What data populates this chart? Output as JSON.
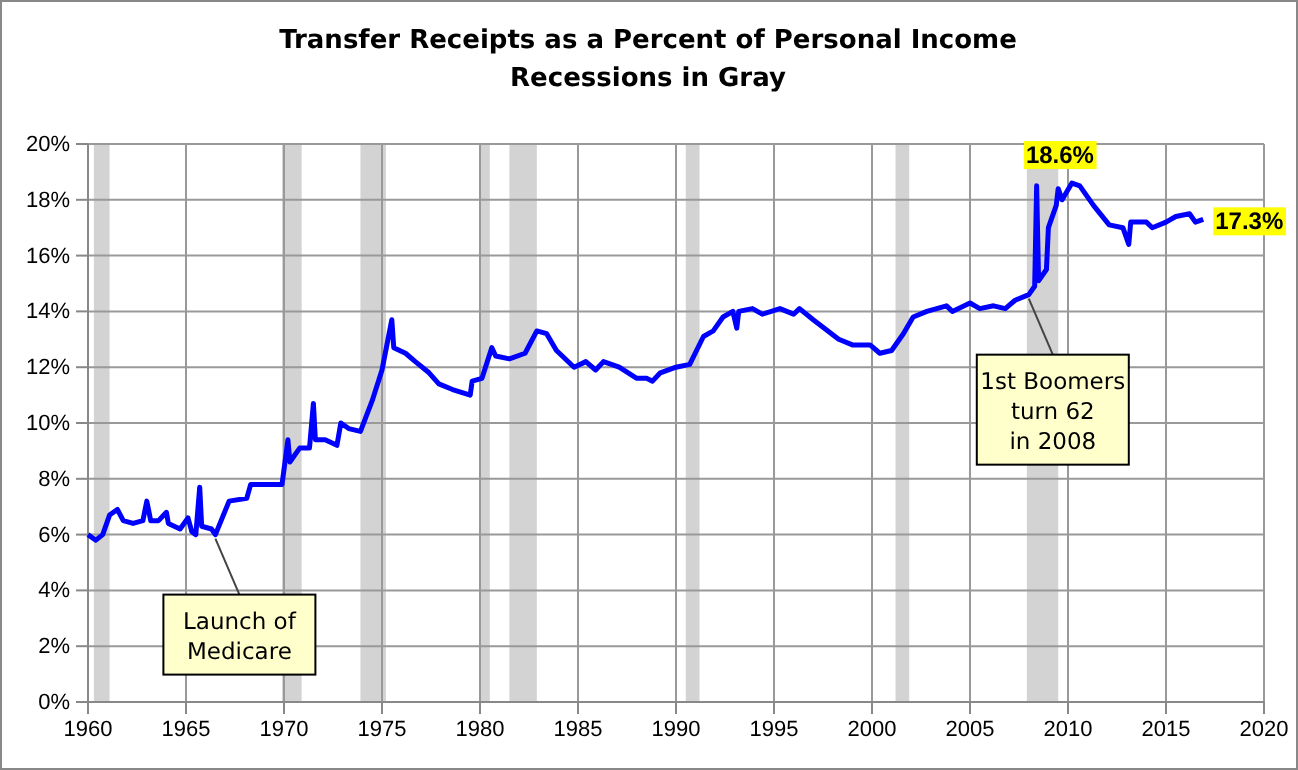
{
  "chart_data": {
    "type": "line",
    "title": "Transfer Receipts as a Percent of Personal Income",
    "subtitle": "Recessions in Gray",
    "x": [
      1960,
      1960.4,
      1960.75,
      1961.1,
      1961.5,
      1961.8,
      1962.3,
      1962.8,
      1963.0,
      1963.2,
      1963.6,
      1964.0,
      1964.1,
      1964.7,
      1965.1,
      1965.3,
      1965.5,
      1965.7,
      1965.8,
      1966.3,
      1966.5,
      1967.2,
      1968.1,
      1968.3,
      1969.1,
      1969.9,
      1970.2,
      1970.3,
      1970.8,
      1971.3,
      1971.5,
      1971.6,
      1972.1,
      1972.7,
      1972.9,
      1973.3,
      1973.9,
      1974.5,
      1975.0,
      1975.5,
      1975.6,
      1976.2,
      1976.7,
      1977.4,
      1977.9,
      1978.6,
      1979.5,
      1979.6,
      1980.1,
      1980.6,
      1980.8,
      1981.5,
      1982.3,
      1982.9,
      1983.4,
      1983.9,
      1984.8,
      1985.4,
      1985.9,
      1986.3,
      1987.1,
      1988.0,
      1988.5,
      1988.8,
      1989.2,
      1990.0,
      1990.7,
      1991.4,
      1991.9,
      1992.4,
      1992.9,
      1993.1,
      1993.2,
      1993.9,
      1994.4,
      1995.3,
      1996.0,
      1996.3,
      1997.0,
      1998.3,
      1999.0,
      1999.9,
      2000.4,
      2001.0,
      2001.6,
      2002.1,
      2002.8,
      2003.8,
      2004.1,
      2005.0,
      2005.5,
      2006.2,
      2006.8,
      2007.3,
      2008.0,
      2008.3,
      2008.4,
      2008.5,
      2008.9,
      2009.0,
      2009.4,
      2009.5,
      2009.7,
      2010.2,
      2010.6,
      2011.3,
      2012.1,
      2012.8,
      2013.1,
      2013.2,
      2014.0,
      2014.3,
      2015.0,
      2015.5,
      2016.2,
      2016.5,
      2016.9
    ],
    "series": [
      {
        "color": "#0000ff",
        "values": [
          6.0,
          5.8,
          6.0,
          6.7,
          6.9,
          6.5,
          6.4,
          6.5,
          7.2,
          6.5,
          6.5,
          6.8,
          6.4,
          6.2,
          6.6,
          6.1,
          6.0,
          7.7,
          6.3,
          6.2,
          6.0,
          7.2,
          7.3,
          7.8,
          7.8,
          7.8,
          9.4,
          8.6,
          9.1,
          9.1,
          10.7,
          9.4,
          9.4,
          9.2,
          10.0,
          9.8,
          9.7,
          10.8,
          11.9,
          13.7,
          12.7,
          12.5,
          12.2,
          11.8,
          11.4,
          11.2,
          11.0,
          11.5,
          11.6,
          12.7,
          12.4,
          12.3,
          12.5,
          13.3,
          13.2,
          12.6,
          12.0,
          12.2,
          11.9,
          12.2,
          12.0,
          11.6,
          11.6,
          11.5,
          11.8,
          12.0,
          12.1,
          13.1,
          13.3,
          13.8,
          14.0,
          13.4,
          14.0,
          14.1,
          13.9,
          14.1,
          13.9,
          14.1,
          13.7,
          13.0,
          12.8,
          12.8,
          12.5,
          12.6,
          13.2,
          13.8,
          14.0,
          14.2,
          14.0,
          14.3,
          14.1,
          14.2,
          14.1,
          14.4,
          14.6,
          14.9,
          18.5,
          15.1,
          15.5,
          17.0,
          17.8,
          18.4,
          18.0,
          18.6,
          18.5,
          17.8,
          17.1,
          17.0,
          16.4,
          17.2,
          17.2,
          17.0,
          17.2,
          17.4,
          17.5,
          17.2,
          17.3
        ]
      }
    ],
    "xlim": [
      1960,
      2020
    ],
    "xticks": [
      1960,
      1965,
      1970,
      1975,
      1980,
      1985,
      1990,
      1995,
      2000,
      2005,
      2010,
      2015,
      2020
    ],
    "ylim": [
      0,
      20
    ],
    "yticks": [
      {
        "value": 0,
        "label": "0%"
      },
      {
        "value": 2,
        "label": "2%"
      },
      {
        "value": 4,
        "label": "4%"
      },
      {
        "value": 6,
        "label": "6%"
      },
      {
        "value": 8,
        "label": "8%"
      },
      {
        "value": 10,
        "label": "10%"
      },
      {
        "value": 12,
        "label": "12%"
      },
      {
        "value": 14,
        "label": "14%"
      },
      {
        "value": 16,
        "label": "16%"
      },
      {
        "value": 18,
        "label": "18%"
      },
      {
        "value": 20,
        "label": "20%"
      }
    ],
    "grid": true,
    "marker": "none",
    "line_style": "solid",
    "bands": [
      {
        "axis": "x",
        "from": 1960.3,
        "to": 1961.1,
        "color": "#d3d3d3"
      },
      {
        "axis": "x",
        "from": 1969.9,
        "to": 1970.9,
        "color": "#d3d3d3"
      },
      {
        "axis": "x",
        "from": 1973.9,
        "to": 1975.2,
        "color": "#d3d3d3"
      },
      {
        "axis": "x",
        "from": 1980.0,
        "to": 1980.5,
        "color": "#d3d3d3"
      },
      {
        "axis": "x",
        "from": 1981.5,
        "to": 1982.9,
        "color": "#d3d3d3"
      },
      {
        "axis": "x",
        "from": 1990.5,
        "to": 1991.2,
        "color": "#d3d3d3"
      },
      {
        "axis": "x",
        "from": 2001.2,
        "to": 2001.9,
        "color": "#d3d3d3"
      },
      {
        "axis": "x",
        "from": 2007.9,
        "to": 2009.5,
        "color": "#d3d3d3"
      }
    ],
    "annotations": [
      {
        "text": "18.6%",
        "x": 2010.2,
        "y": 18.6
      },
      {
        "text": "17.3%",
        "x": 2016.9,
        "y": 17.3
      },
      {
        "text": "Launch of\nMedicare",
        "x": 1966.5,
        "y": 6.0
      },
      {
        "text": "1st Boomers\nturn 62\nin 2008",
        "x": 2008.0,
        "y": 14.6
      }
    ]
  }
}
